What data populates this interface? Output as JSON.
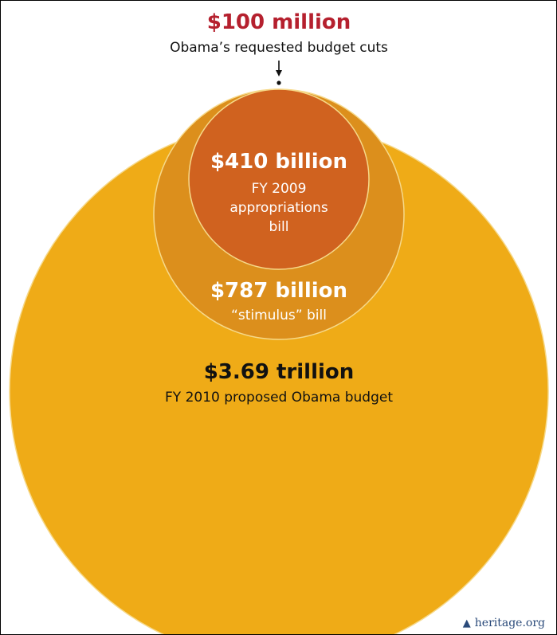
{
  "chart_data": {
    "type": "bubble",
    "series": [
      {
        "value": "$3.69 trillion",
        "amount_billions": 3690,
        "label": "FY 2010 proposed Obama budget",
        "color": "#efab17"
      },
      {
        "value": "$787 billion",
        "amount_billions": 787,
        "label": "“stimulus” bill",
        "color": "#dc8f1c"
      },
      {
        "value": "$410 billion",
        "amount_billions": 410,
        "label_lines": [
          "FY 2009",
          "appropriations",
          "bill"
        ],
        "color": "#d0621f"
      },
      {
        "value": "$100 million",
        "amount_billions": 0.1,
        "label": "Obama’s requested budget cuts",
        "color": "#b5202e"
      }
    ]
  },
  "colors": {
    "top_value": "#b5202e",
    "stroke": "#f6d98a"
  },
  "credit": {
    "text": "heritage.org",
    "icon": "liberty-bell-icon"
  }
}
